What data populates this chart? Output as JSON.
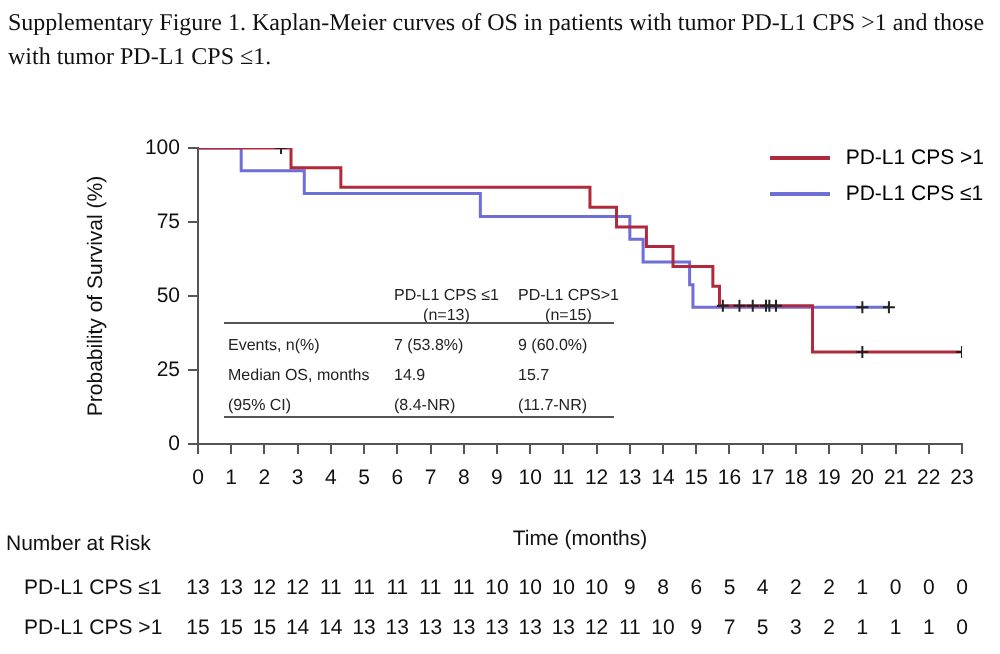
{
  "chart_data": {
    "type": "step",
    "title": "Supplementary Figure 1. Kaplan-Meier curves of OS in patients with tumor PD-L1 CPS >1 and those with tumor PD-L1 CPS ≤1.",
    "xlabel": "Time (months)",
    "ylabel": "Probability of Survival (%)",
    "xlim": [
      0,
      23
    ],
    "xticks": [
      0,
      1,
      2,
      3,
      4,
      5,
      6,
      7,
      8,
      9,
      10,
      11,
      12,
      13,
      14,
      15,
      16,
      17,
      18,
      19,
      20,
      21,
      22,
      23
    ],
    "ylim": [
      0,
      100
    ],
    "yticks": [
      0,
      25,
      50,
      75,
      100
    ],
    "grid": false,
    "legend": "top right",
    "series": [
      {
        "name": "PD-L1 CPS >1",
        "color": "#b02a3c",
        "marker": "none",
        "x": [
          0,
          2.8,
          4.3,
          11.8,
          12.6,
          13.5,
          14.3,
          15.5,
          15.7,
          18.5,
          23
        ],
        "values": [
          100,
          93.3,
          86.7,
          80,
          73.3,
          66.7,
          60,
          53.3,
          46.7,
          31.1,
          31.1
        ]
      },
      {
        "name": "PD-L1 CPS ≤1",
        "color": "#6f6fd8",
        "marker": "none",
        "x": [
          0,
          1.3,
          3.2,
          8.5,
          13,
          13.4,
          14.8,
          14.9,
          20.8
        ],
        "values": [
          100,
          92.3,
          84.6,
          76.9,
          69.2,
          61.5,
          53.8,
          46.2,
          46.2
        ]
      },
      {
        "type": "scatter",
        "color": "#222222",
        "marker": "cross",
        "x": [
          2.5,
          15.8,
          16.3,
          16.7,
          17.1,
          17.2,
          17.4,
          20,
          23
        ],
        "values": [
          100,
          46.7,
          46.7,
          46.7,
          46.7,
          46.7,
          46.7,
          31.1,
          31.1
        ]
      },
      {
        "type": "scatter",
        "color": "#222222",
        "marker": "cross",
        "x": [
          20,
          20.8
        ],
        "values": [
          46.2,
          46.2
        ]
      }
    ],
    "annotations": [
      "PD-L1 CPS ≤1\n(n=13)",
      "PD-L1 CPS>1\n(n=15)",
      "Events, n(%)",
      "7 (53.8%)",
      "9 (60.0%)",
      "Median OS, months",
      "14.9",
      "15.7",
      "(95% CI)",
      "(8.4-NR)",
      "(11.7-NR)",
      "Number at Risk",
      "PD-L1 CPS ≤1",
      "13 13 12 12 11 11 11 11 11 10 10 10 10 9 8 6 5 4 2 2 1 0 0 0",
      "PD-L1 CPS >1",
      "15 15 15 14 14 13 13 13 13 13 13 13 12 11 10 9 7 5 3 2 1 1 1 0"
    ]
  }
}
